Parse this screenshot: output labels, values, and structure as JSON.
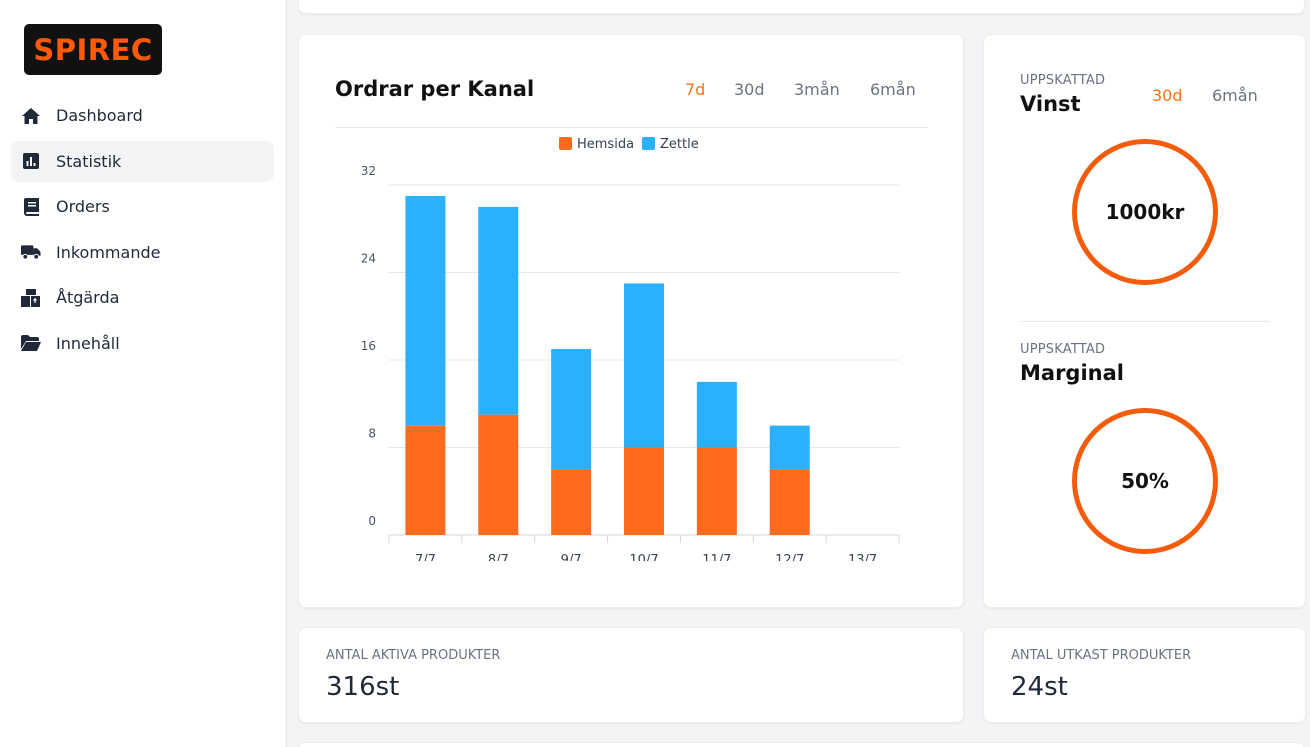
{
  "brand": {
    "logo_text": "SPIREC",
    "accent": "#f97316"
  },
  "sidebar": {
    "items": [
      {
        "label": "Dashboard",
        "icon": "home-icon"
      },
      {
        "label": "Statistik",
        "icon": "chart-icon",
        "active": true
      },
      {
        "label": "Orders",
        "icon": "book-icon"
      },
      {
        "label": "Inkommande",
        "icon": "truck-icon"
      },
      {
        "label": "Åtgärda",
        "icon": "boxes-icon"
      },
      {
        "label": "Innehåll",
        "icon": "folder-open-icon"
      }
    ]
  },
  "orders_card": {
    "title": "Ordrar per Kanal",
    "tabs": [
      "7d",
      "30d",
      "3mån",
      "6mån"
    ],
    "active_tab": "7d"
  },
  "profit_card": {
    "label": "UPPSKATTAD",
    "title": "Vinst",
    "tabs": [
      "30d",
      "6mån"
    ],
    "active_tab": "30d",
    "value": "1000kr"
  },
  "margin_card": {
    "label": "UPPSKATTAD",
    "title": "Marginal",
    "value": "50%"
  },
  "active_products": {
    "label": "ANTAL AKTIVA PRODUKTER",
    "value": "316st"
  },
  "draft_products": {
    "label": "ANTAL UTKAST PRODUKTER",
    "value": "24st"
  },
  "chart_data": {
    "type": "bar",
    "stacked": true,
    "categories": [
      "7/7",
      "8/7",
      "9/7",
      "10/7",
      "11/7",
      "12/7",
      "13/7"
    ],
    "series": [
      {
        "name": "Hemsida",
        "color": "#ff6a1f",
        "values": [
          10,
          11,
          6,
          8,
          8,
          6,
          0
        ]
      },
      {
        "name": "Zettle",
        "color": "#29b1fd",
        "values": [
          21,
          19,
          11,
          15,
          6,
          4,
          0
        ]
      }
    ],
    "ylim": [
      0,
      32
    ],
    "yticks": [
      0,
      8,
      16,
      24,
      32
    ],
    "legend": "top",
    "grid": true
  }
}
